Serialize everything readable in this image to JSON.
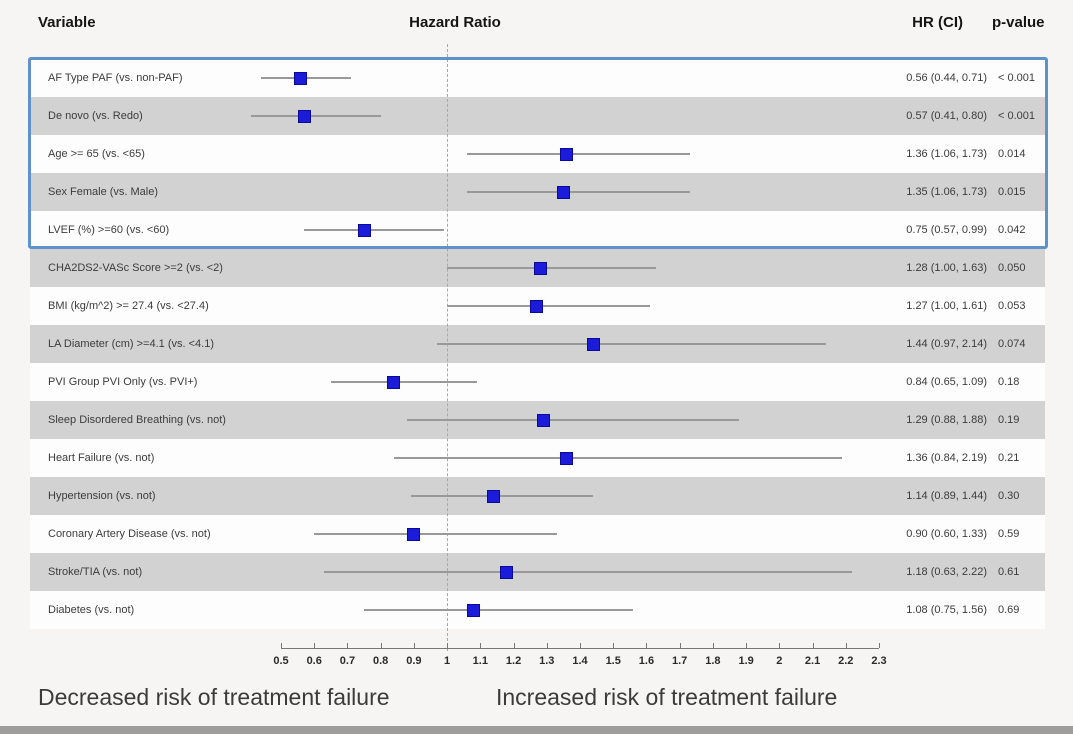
{
  "header": {
    "variable": "Variable",
    "hazard_ratio": "Hazard Ratio",
    "hr_ci": "HR (CI)",
    "p_value": "p-value"
  },
  "footer": {
    "left_label": "Decreased risk of treatment failure",
    "right_label": "Increased risk of treatment failure"
  },
  "colors": {
    "background": "#f6f5f3",
    "band_white": "#fdfdfd",
    "band_gray": "#d2d2d2",
    "marker_fill": "#1b1bd9",
    "marker_border": "#0a0a99",
    "ci_line": "#999999",
    "reference_line": "#a8a8a8",
    "highlight_border": "#5e92c8",
    "axis": "#777777",
    "text": "#3c3c3c"
  },
  "chart_data": {
    "type": "scatter",
    "subtype": "forest-plot",
    "title": "Hazard Ratio",
    "xlabel": "",
    "ylabel": "",
    "xlim": [
      0.5,
      2.3
    ],
    "reference_value": 1,
    "grid": false,
    "x_ticks": [
      "0.5",
      "0.6",
      "0.7",
      "0.8",
      "0.9",
      "1",
      "1.1",
      "1.2",
      "1.3",
      "1.4",
      "1.5",
      "1.6",
      "1.7",
      "1.8",
      "1.9",
      "2",
      "2.1",
      "2.2",
      "2.3"
    ],
    "highlighted_rows_note": "first five rows enclosed in blue highlight box",
    "rows": [
      {
        "label": "AF Type PAF (vs. non-PAF)",
        "hr": 0.56,
        "ci_low": 0.44,
        "ci_high": 0.71,
        "hr_ci": "0.56 (0.44, 0.71)",
        "p_value": "< 0.001",
        "highlighted": true
      },
      {
        "label": "De novo (vs. Redo)",
        "hr": 0.57,
        "ci_low": 0.41,
        "ci_high": 0.8,
        "hr_ci": "0.57 (0.41, 0.80)",
        "p_value": "< 0.001",
        "highlighted": true
      },
      {
        "label": "Age >= 65 (vs. <65)",
        "hr": 1.36,
        "ci_low": 1.06,
        "ci_high": 1.73,
        "hr_ci": "1.36 (1.06, 1.73)",
        "p_value": "0.014",
        "highlighted": true
      },
      {
        "label": "Sex Female (vs. Male)",
        "hr": 1.35,
        "ci_low": 1.06,
        "ci_high": 1.73,
        "hr_ci": "1.35 (1.06, 1.73)",
        "p_value": "0.015",
        "highlighted": true
      },
      {
        "label": "LVEF (%) >=60 (vs. <60)",
        "hr": 0.75,
        "ci_low": 0.57,
        "ci_high": 0.99,
        "hr_ci": "0.75 (0.57, 0.99)",
        "p_value": "0.042",
        "highlighted": true
      },
      {
        "label": "CHA2DS2-VASc Score >=2 (vs. <2)",
        "hr": 1.28,
        "ci_low": 1.0,
        "ci_high": 1.63,
        "hr_ci": "1.28 (1.00, 1.63)",
        "p_value": "0.050",
        "highlighted": false
      },
      {
        "label": "BMI (kg/m^2) >= 27.4 (vs. <27.4)",
        "hr": 1.27,
        "ci_low": 1.0,
        "ci_high": 1.61,
        "hr_ci": "1.27 (1.00, 1.61)",
        "p_value": "0.053",
        "highlighted": false
      },
      {
        "label": "LA Diameter (cm) >=4.1 (vs. <4.1)",
        "hr": 1.44,
        "ci_low": 0.97,
        "ci_high": 2.14,
        "hr_ci": "1.44 (0.97, 2.14)",
        "p_value": "0.074",
        "highlighted": false
      },
      {
        "label": "PVI Group PVI Only (vs. PVI+)",
        "hr": 0.84,
        "ci_low": 0.65,
        "ci_high": 1.09,
        "hr_ci": "0.84 (0.65, 1.09)",
        "p_value": "0.18",
        "highlighted": false
      },
      {
        "label": "Sleep Disordered Breathing (vs. not)",
        "hr": 1.29,
        "ci_low": 0.88,
        "ci_high": 1.88,
        "hr_ci": "1.29 (0.88, 1.88)",
        "p_value": "0.19",
        "highlighted": false
      },
      {
        "label": "Heart Failure (vs. not)",
        "hr": 1.36,
        "ci_low": 0.84,
        "ci_high": 2.19,
        "hr_ci": "1.36 (0.84, 2.19)",
        "p_value": "0.21",
        "highlighted": false
      },
      {
        "label": "Hypertension (vs. not)",
        "hr": 1.14,
        "ci_low": 0.89,
        "ci_high": 1.44,
        "hr_ci": "1.14 (0.89, 1.44)",
        "p_value": "0.30",
        "highlighted": false
      },
      {
        "label": "Coronary Artery Disease (vs. not)",
        "hr": 0.9,
        "ci_low": 0.6,
        "ci_high": 1.33,
        "hr_ci": "0.90 (0.60, 1.33)",
        "p_value": "0.59",
        "highlighted": false
      },
      {
        "label": "Stroke/TIA (vs. not)",
        "hr": 1.18,
        "ci_low": 0.63,
        "ci_high": 2.22,
        "hr_ci": "1.18 (0.63, 2.22)",
        "p_value": "0.61",
        "highlighted": false
      },
      {
        "label": "Diabetes (vs. not)",
        "hr": 1.08,
        "ci_low": 0.75,
        "ci_high": 1.56,
        "hr_ci": "1.08 (0.75, 1.56)",
        "p_value": "0.69",
        "highlighted": false
      }
    ]
  }
}
